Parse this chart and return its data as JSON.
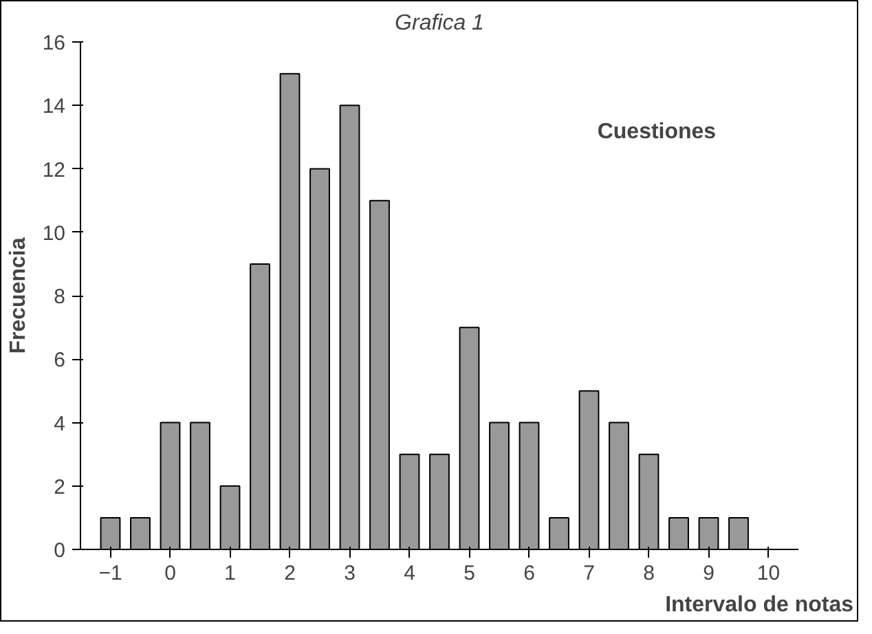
{
  "chart_data": {
    "type": "bar",
    "title": "Grafica 1",
    "xlabel": "Intervalo de notas",
    "ylabel": "Frecuencia",
    "annotations": [
      "Cuestiones"
    ],
    "x": [
      -1,
      -0.5,
      0,
      0.5,
      1,
      1.5,
      2,
      2.5,
      3,
      3.5,
      4,
      4.5,
      5,
      5.5,
      6,
      6.5,
      7,
      7.5,
      8,
      8.5,
      9,
      9.5
    ],
    "values": [
      1,
      1,
      4,
      4,
      2,
      9,
      15,
      12,
      14,
      11,
      3,
      3,
      7,
      4,
      4,
      1,
      5,
      4,
      3,
      1,
      1,
      1
    ],
    "color": "#999999",
    "xlim": [
      -1.5,
      10.5
    ],
    "xticks": [
      -1,
      0,
      1,
      2,
      3,
      4,
      5,
      6,
      7,
      8,
      9,
      10
    ],
    "ylim": [
      0,
      16
    ],
    "yticks": [
      0,
      2,
      4,
      6,
      8,
      10,
      12,
      14,
      16
    ],
    "grid": false
  }
}
